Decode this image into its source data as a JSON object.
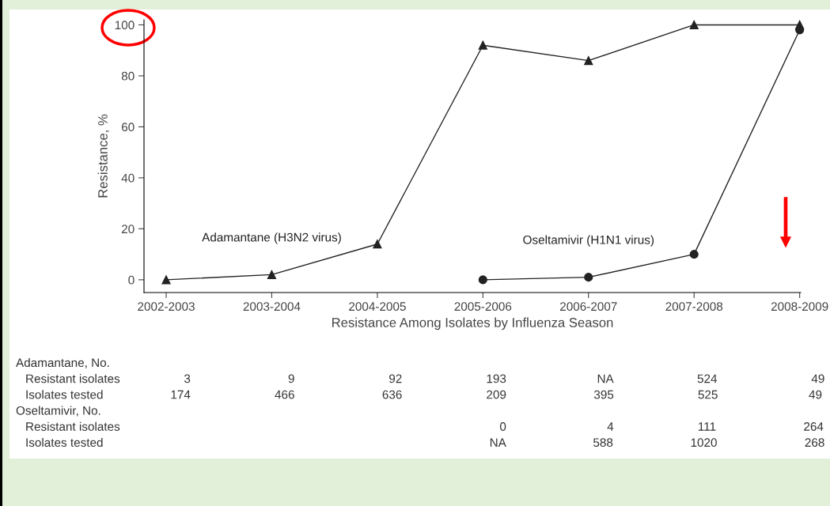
{
  "chart_data": {
    "type": "line",
    "xlabel": "Resistance Among Isolates by Influenza Season",
    "ylabel": "Resistance, %",
    "categories": [
      "2002-2003",
      "2003-2004",
      "2004-2005",
      "2005-2006",
      "2006-2007",
      "2007-2008",
      "2008-2009"
    ],
    "series": [
      {
        "name": "Adamantane (H3N2 virus)",
        "color": "#222222",
        "marker": "triangle",
        "values": [
          0,
          2,
          14,
          92,
          86,
          100,
          100
        ]
      },
      {
        "name": "Oseltamivir (H1N1 virus)",
        "color": "#222222",
        "marker": "circle",
        "values": [
          null,
          null,
          null,
          0,
          1,
          10,
          98
        ]
      }
    ],
    "ylim": [
      -5,
      102
    ],
    "yticks": [
      0,
      20,
      40,
      60,
      80,
      100
    ],
    "grid": false,
    "legend": false,
    "line_style": "solid",
    "annotations": [
      "Adamantane, No.",
      "Resistant isolates\t3\t9\t92\t193\tNA\t524\t49",
      "Isolates tested\t174\t466\t636\t209\t395\t525\t49",
      "Oseltamivir, No.",
      "Resistant isolates\t\t\t\t0\t4\t111\t264",
      "Isolates tested\t\t\t\tNA\t588\t1020\t268"
    ]
  }
}
